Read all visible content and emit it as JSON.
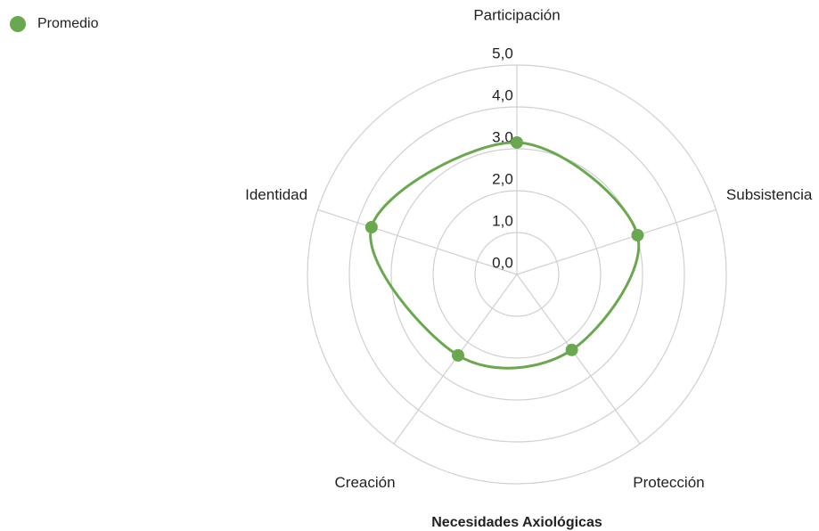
{
  "chart_data": {
    "type": "radar",
    "title": "Necesidades Axiológicas",
    "categories": [
      "Participación",
      "Subsistencia",
      "Protección",
      "Creación",
      "Identidad"
    ],
    "series": [
      {
        "name": "Promedio",
        "color": "#6aa84f",
        "values": [
          3.15,
          3.03,
          2.23,
          2.39,
          3.65
        ]
      }
    ],
    "rlim": [
      0,
      5
    ],
    "rticks": [
      {
        "value": 0,
        "label": "0,0"
      },
      {
        "value": 1,
        "label": "1,0"
      },
      {
        "value": 2,
        "label": "2,0"
      },
      {
        "value": 3,
        "label": "3,0"
      },
      {
        "value": 4,
        "label": "4,0"
      },
      {
        "value": 5,
        "label": "5,0"
      }
    ],
    "legend": "top-left",
    "grid": true
  }
}
